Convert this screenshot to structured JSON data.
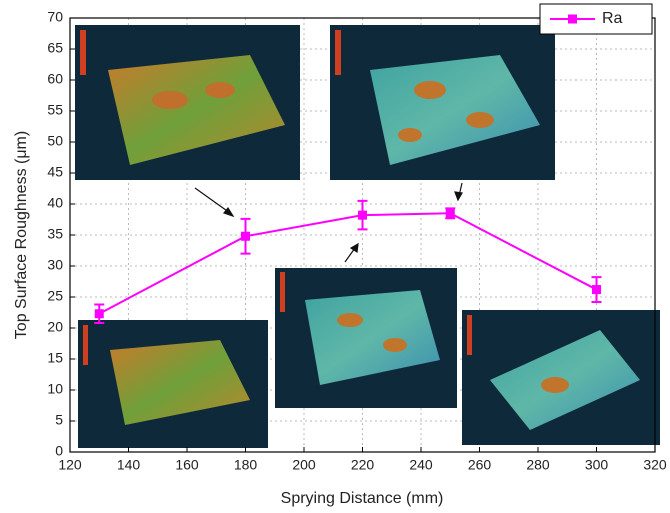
{
  "chart_data": {
    "type": "line",
    "x_label": "Sprying Distance (mm)",
    "y_label": "Top Surface Roughness (μm)",
    "x": [
      130,
      180,
      220,
      250,
      300
    ],
    "series": [
      {
        "name": "Ra",
        "color": "#ff00ff",
        "values": [
          22.3,
          34.8,
          38.2,
          38.5,
          26.2
        ],
        "errors": [
          1.5,
          2.8,
          2.3,
          0.8,
          2.0
        ]
      }
    ],
    "xlim": [
      120,
      320
    ],
    "xticks": [
      120,
      140,
      160,
      180,
      200,
      220,
      240,
      260,
      280,
      300,
      320
    ],
    "ylim": [
      0,
      70
    ],
    "yticks": [
      0,
      5,
      10,
      15,
      20,
      25,
      30,
      35,
      40,
      45,
      50,
      55,
      60,
      65,
      70
    ],
    "grid": true,
    "legend": "upper right"
  }
}
